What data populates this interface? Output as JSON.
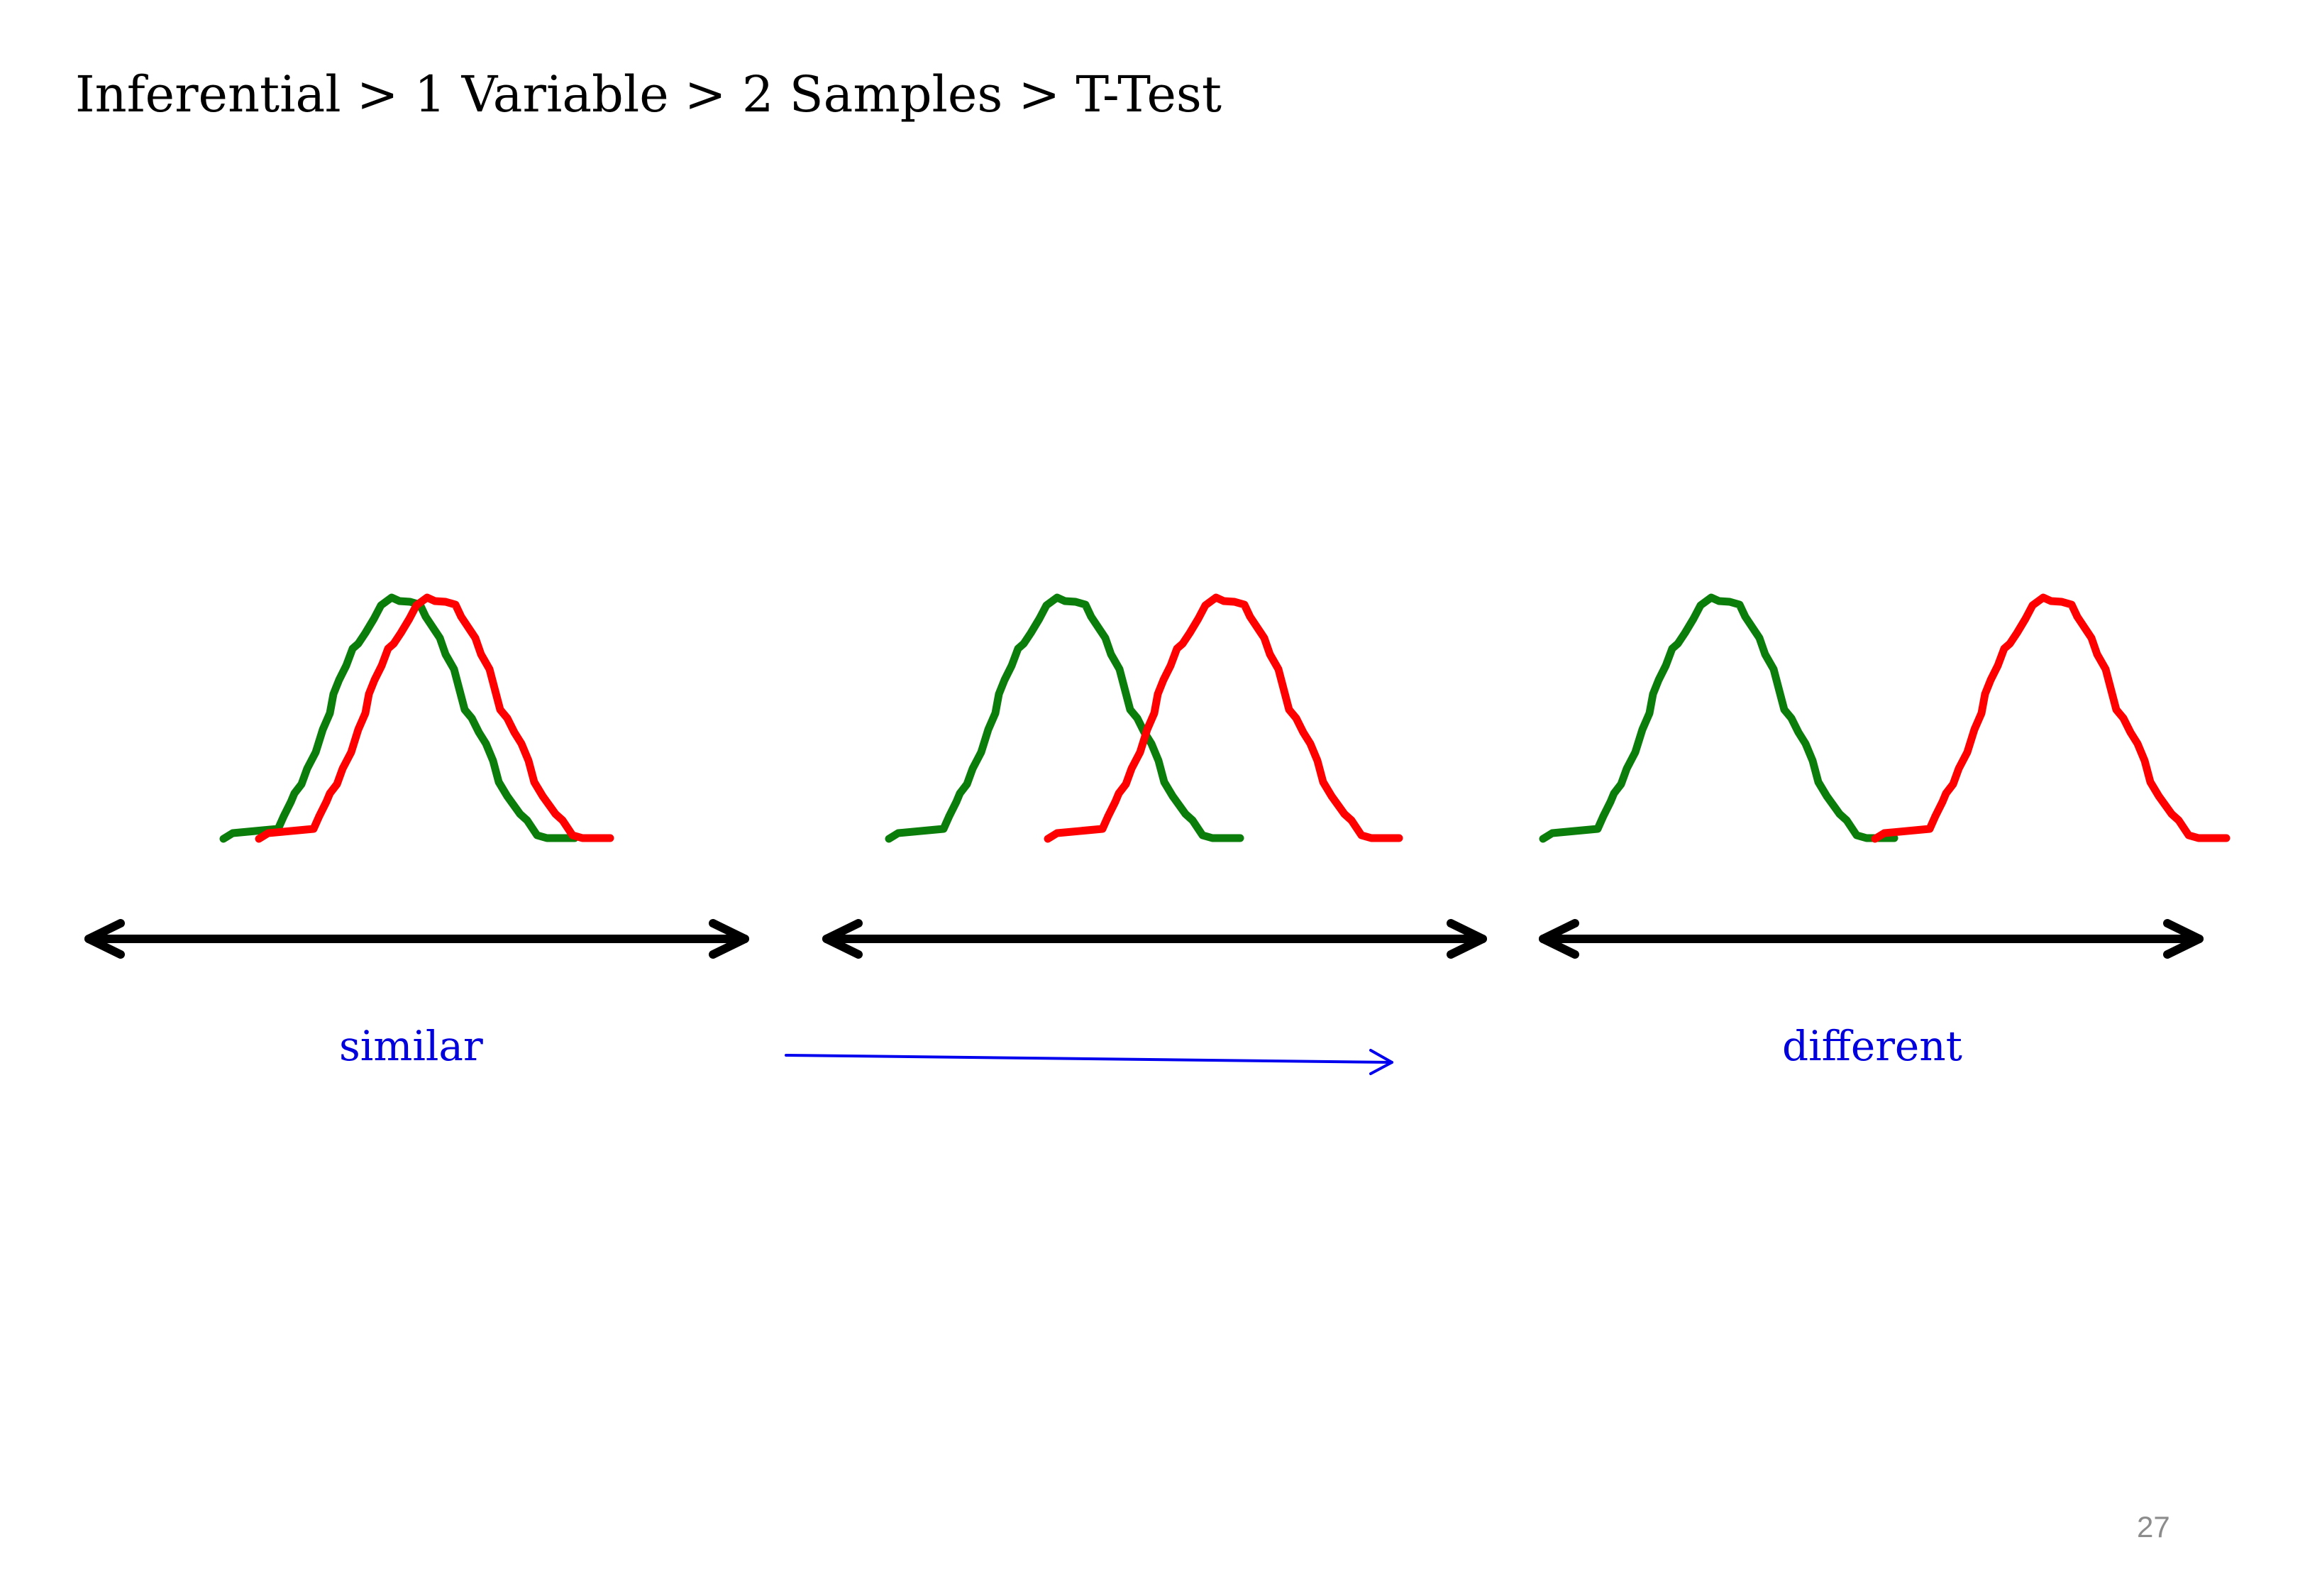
{
  "title": "Inferential > 1 Variable > 2 Samples > T-Test",
  "labels": {
    "similar": "similar",
    "different": "different"
  },
  "page_number": "27",
  "colors": {
    "group_a": "#0a7d0a",
    "group_b": "#ff0000",
    "axis": "#000000",
    "label": "#0000dd",
    "trend_arrow": "#0000ee",
    "page_number": "#8c8c8c"
  },
  "icons": {
    "axis": "double-headed-arrow",
    "trend": "right-arrow"
  }
}
